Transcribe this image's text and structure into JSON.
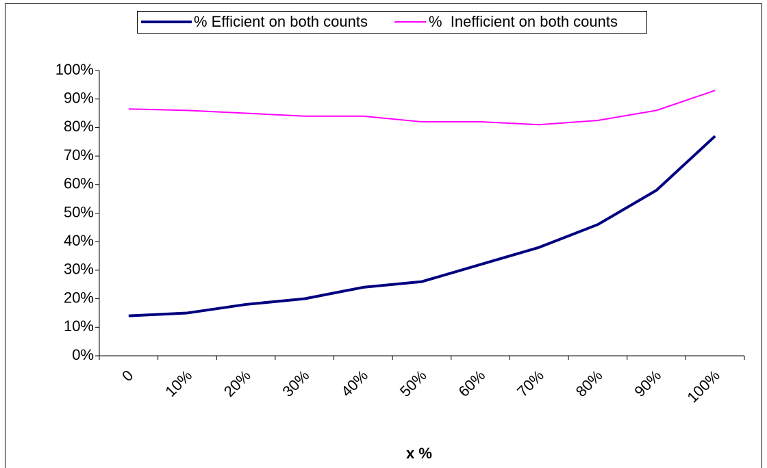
{
  "chart_data": {
    "type": "line",
    "x_label": "x %",
    "categories": [
      "0",
      "10%",
      "20%",
      "30%",
      "40%",
      "50%",
      "60%",
      "70%",
      "80%",
      "90%",
      "100%"
    ],
    "series": [
      {
        "name": "% Efficient on both counts",
        "color": "#000080",
        "values": [
          14,
          15,
          18,
          20,
          24,
          26,
          32,
          38,
          46,
          58,
          77
        ]
      },
      {
        "name": "%  Inefficient on both counts",
        "color": "#ff00ff",
        "values": [
          86.5,
          86,
          85,
          84,
          84,
          82,
          82,
          81,
          82.5,
          86,
          93
        ]
      }
    ],
    "ylim": [
      0,
      100
    ],
    "yticks": [
      {
        "value": 0,
        "label": "0%"
      },
      {
        "value": 10,
        "label": "10%"
      },
      {
        "value": 20,
        "label": "20%"
      },
      {
        "value": 30,
        "label": "30%"
      },
      {
        "value": 40,
        "label": "40%"
      },
      {
        "value": 50,
        "label": "50%"
      },
      {
        "value": 60,
        "label": "60%"
      },
      {
        "value": 70,
        "label": "70%"
      },
      {
        "value": 80,
        "label": "80%"
      },
      {
        "value": 90,
        "label": "90%"
      },
      {
        "value": 100,
        "label": "100%"
      }
    ],
    "legend": "top"
  }
}
